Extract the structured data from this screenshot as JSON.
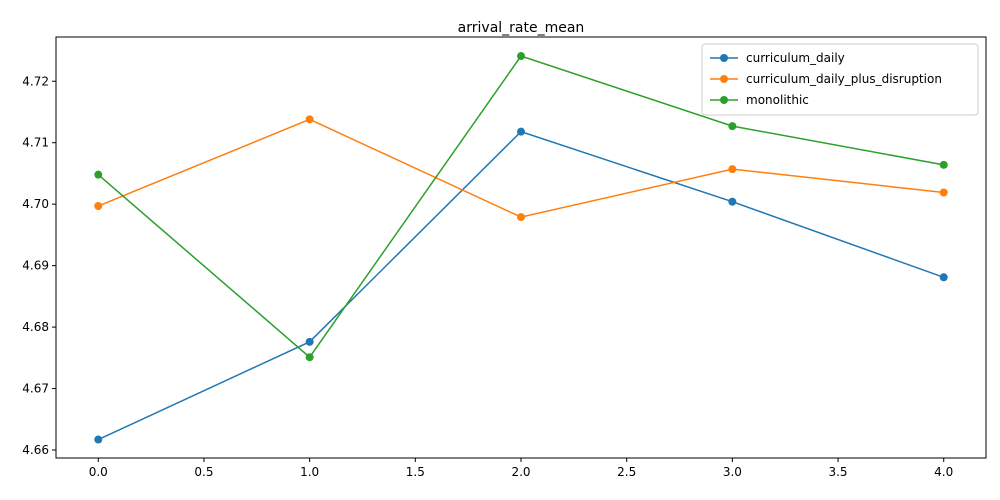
{
  "chart_data": {
    "type": "line",
    "title": "arrival_rate_mean",
    "xlabel": "",
    "ylabel": "",
    "x": [
      0,
      1,
      2,
      3,
      4
    ],
    "xlim": [
      -0.2,
      4.2
    ],
    "ylim": [
      4.6587,
      4.7272
    ],
    "xticks": [
      0.0,
      0.5,
      1.0,
      1.5,
      2.0,
      2.5,
      3.0,
      3.5,
      4.0
    ],
    "xtick_labels": [
      "0.0",
      "0.5",
      "1.0",
      "1.5",
      "2.0",
      "2.5",
      "3.0",
      "3.5",
      "4.0"
    ],
    "yticks": [
      4.66,
      4.67,
      4.68,
      4.69,
      4.7,
      4.71,
      4.72
    ],
    "ytick_labels": [
      "4.66",
      "4.67",
      "4.68",
      "4.69",
      "4.70",
      "4.71",
      "4.72"
    ],
    "grid": false,
    "legend_position": "top-right",
    "series": [
      {
        "name": "curriculum_daily",
        "color": "#1f77b4",
        "values": [
          4.6617,
          4.6776,
          4.7118,
          4.7004,
          4.6881
        ]
      },
      {
        "name": "curriculum_daily_plus_disruption",
        "color": "#ff7f0e",
        "values": [
          4.6997,
          4.7138,
          4.6979,
          4.7057,
          4.7019
        ]
      },
      {
        "name": "monolithic",
        "color": "#2ca02c",
        "values": [
          4.7048,
          4.6751,
          4.7241,
          4.7127,
          4.7064
        ]
      }
    ]
  }
}
